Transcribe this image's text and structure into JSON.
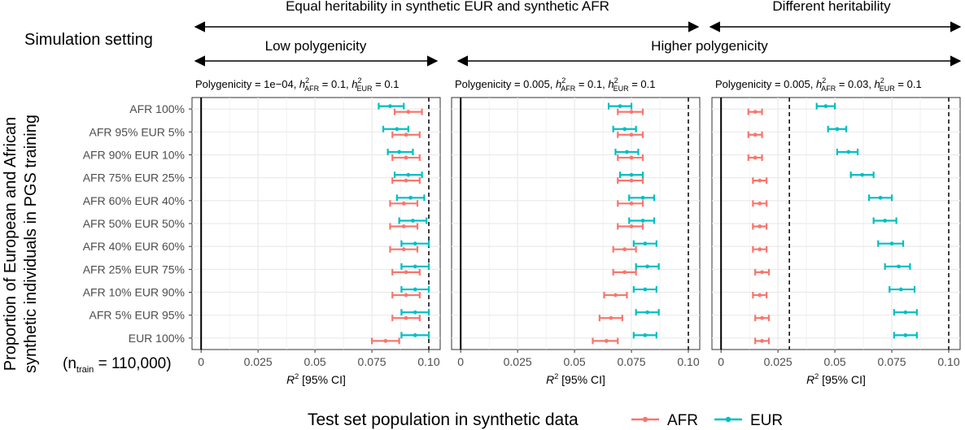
{
  "header": {
    "equal_heritability": "Equal heritability in synthetic EUR and synthetic AFR",
    "different_heritability": "Different heritability",
    "simulation_setting": "Simulation setting",
    "low_polygenicity": "Low polygenicity",
    "higher_polygenicity": "Higher polygenicity"
  },
  "ylabel": {
    "line1": "Proportion of European and African",
    "line2": "synthetic individuals in PGS training"
  },
  "n_train_note": {
    "prefix": "(n",
    "subscript": "train",
    "suffix": " = 110,000)"
  },
  "legend": {
    "title": "Test set population in synthetic data",
    "items": [
      {
        "label": "AFR",
        "color": "#F8766D"
      },
      {
        "label": "EUR",
        "color": "#00BFC4"
      }
    ]
  },
  "colors": {
    "AFR": "#F8766D",
    "EUR": "#00BFC4",
    "grid": "#EBEBEB",
    "frame": "#333333"
  },
  "chart_data": [
    {
      "type": "scatter",
      "title_parts": {
        "polygenicity": "Polygenicity = 1e−04, ",
        "h": "h",
        "sup": "2",
        "afr_sub": "AFR",
        "afr_val": " = 0.1, ",
        "eur_sub": "EUR",
        "eur_val": " = 0.1"
      },
      "xlabel_var": "R",
      "xlabel_sup": "2",
      "xlabel_rest": " [95% CI]",
      "xlim": [
        -0.004,
        0.105
      ],
      "xticks": [
        0,
        0.025,
        0.05,
        0.075,
        0.1
      ],
      "xtick_labels": [
        "0",
        "0.025",
        "0.05",
        "0.075",
        "0.10"
      ],
      "dashed_vline": 0.1,
      "categories": [
        "AFR 100%",
        "AFR 95% EUR 5%",
        "AFR 90% EUR 10%",
        "AFR 75% EUR 25%",
        "AFR 60% EUR 40%",
        "AFR 50% EUR 50%",
        "AFR 40% EUR 60%",
        "AFR 25% EUR 75%",
        "AFR 10% EUR 90%",
        "AFR 5% EUR 95%",
        "EUR 100%"
      ],
      "series": [
        {
          "name": "AFR",
          "values": [
            0.091,
            0.09,
            0.09,
            0.09,
            0.089,
            0.089,
            0.089,
            0.09,
            0.09,
            0.09,
            0.081
          ],
          "ci_low": [
            0.085,
            0.084,
            0.084,
            0.084,
            0.083,
            0.083,
            0.083,
            0.084,
            0.084,
            0.084,
            0.075
          ],
          "ci_high": [
            0.097,
            0.096,
            0.096,
            0.096,
            0.095,
            0.095,
            0.095,
            0.096,
            0.096,
            0.096,
            0.087
          ]
        },
        {
          "name": "EUR",
          "values": [
            0.083,
            0.086,
            0.087,
            0.091,
            0.092,
            0.093,
            0.094,
            0.094,
            0.094,
            0.094,
            0.094
          ],
          "ci_low": [
            0.078,
            0.08,
            0.082,
            0.085,
            0.086,
            0.087,
            0.088,
            0.088,
            0.088,
            0.088,
            0.088
          ],
          "ci_high": [
            0.089,
            0.091,
            0.093,
            0.097,
            0.098,
            0.099,
            0.1,
            0.1,
            0.1,
            0.1,
            0.1
          ]
        }
      ]
    },
    {
      "type": "scatter",
      "title_parts": {
        "polygenicity": "Polygenicity = 0.005, ",
        "h": "h",
        "sup": "2",
        "afr_sub": "AFR",
        "afr_val": " = 0.1, ",
        "eur_sub": "EUR",
        "eur_val": " = 0.1"
      },
      "xlabel_var": "R",
      "xlabel_sup": "2",
      "xlabel_rest": " [95% CI]",
      "xlim": [
        -0.004,
        0.105
      ],
      "xticks": [
        0,
        0.025,
        0.05,
        0.075,
        0.1
      ],
      "xtick_labels": [
        "0",
        "0.025",
        "0.05",
        "0.075",
        "0.10"
      ],
      "dashed_vline": 0.1,
      "categories": [
        "AFR 100%",
        "AFR 95% EUR 5%",
        "AFR 90% EUR 10%",
        "AFR 75% EUR 25%",
        "AFR 60% EUR 40%",
        "AFR 50% EUR 50%",
        "AFR 40% EUR 60%",
        "AFR 25% EUR 75%",
        "AFR 10% EUR 90%",
        "AFR 5% EUR 95%",
        "EUR 100%"
      ],
      "series": [
        {
          "name": "AFR",
          "values": [
            0.075,
            0.075,
            0.075,
            0.075,
            0.075,
            0.075,
            0.072,
            0.072,
            0.068,
            0.066,
            0.064
          ],
          "ci_low": [
            0.069,
            0.069,
            0.069,
            0.069,
            0.069,
            0.069,
            0.067,
            0.067,
            0.063,
            0.061,
            0.058
          ],
          "ci_high": [
            0.08,
            0.08,
            0.08,
            0.08,
            0.08,
            0.08,
            0.077,
            0.077,
            0.073,
            0.071,
            0.069
          ]
        },
        {
          "name": "EUR",
          "values": [
            0.07,
            0.072,
            0.073,
            0.075,
            0.08,
            0.08,
            0.081,
            0.082,
            0.081,
            0.082,
            0.081
          ],
          "ci_low": [
            0.065,
            0.067,
            0.068,
            0.07,
            0.074,
            0.074,
            0.076,
            0.077,
            0.076,
            0.077,
            0.076
          ],
          "ci_high": [
            0.075,
            0.077,
            0.078,
            0.08,
            0.085,
            0.085,
            0.086,
            0.087,
            0.086,
            0.087,
            0.086
          ]
        }
      ]
    },
    {
      "type": "scatter",
      "title_parts": {
        "polygenicity": "Polygenicity = 0.005, ",
        "h": "h",
        "sup": "2",
        "afr_sub": "AFR",
        "afr_val": " = 0.03, ",
        "eur_sub": "EUR",
        "eur_val": " = 0.1"
      },
      "xlabel_var": "R",
      "xlabel_sup": "2",
      "xlabel_rest": " [95% CI]",
      "xlim": [
        -0.004,
        0.105
      ],
      "xticks": [
        0,
        0.025,
        0.05,
        0.075,
        0.1
      ],
      "xtick_labels": [
        "0",
        "0.025",
        "0.05",
        "0.075",
        "0.10"
      ],
      "dashed_vlines": [
        0.03,
        0.1
      ],
      "categories": [
        "AFR 100%",
        "AFR 95% EUR 5%",
        "AFR 90% EUR 10%",
        "AFR 75% EUR 25%",
        "AFR 60% EUR 40%",
        "AFR 50% EUR 50%",
        "AFR 40% EUR 60%",
        "AFR 25% EUR 75%",
        "AFR 10% EUR 90%",
        "AFR 5% EUR 95%",
        "EUR 100%"
      ],
      "series": [
        {
          "name": "AFR",
          "values": [
            0.015,
            0.015,
            0.015,
            0.017,
            0.017,
            0.017,
            0.017,
            0.018,
            0.017,
            0.018,
            0.018
          ],
          "ci_low": [
            0.012,
            0.012,
            0.012,
            0.014,
            0.014,
            0.014,
            0.014,
            0.015,
            0.014,
            0.015,
            0.015
          ],
          "ci_high": [
            0.018,
            0.018,
            0.018,
            0.02,
            0.02,
            0.02,
            0.02,
            0.021,
            0.02,
            0.021,
            0.021
          ]
        },
        {
          "name": "EUR",
          "values": [
            0.046,
            0.051,
            0.056,
            0.062,
            0.07,
            0.072,
            0.075,
            0.078,
            0.079,
            0.081,
            0.081
          ],
          "ci_low": [
            0.042,
            0.047,
            0.051,
            0.057,
            0.065,
            0.067,
            0.069,
            0.072,
            0.074,
            0.076,
            0.076
          ],
          "ci_high": [
            0.05,
            0.055,
            0.06,
            0.067,
            0.075,
            0.077,
            0.08,
            0.083,
            0.085,
            0.086,
            0.086
          ]
        }
      ]
    }
  ]
}
